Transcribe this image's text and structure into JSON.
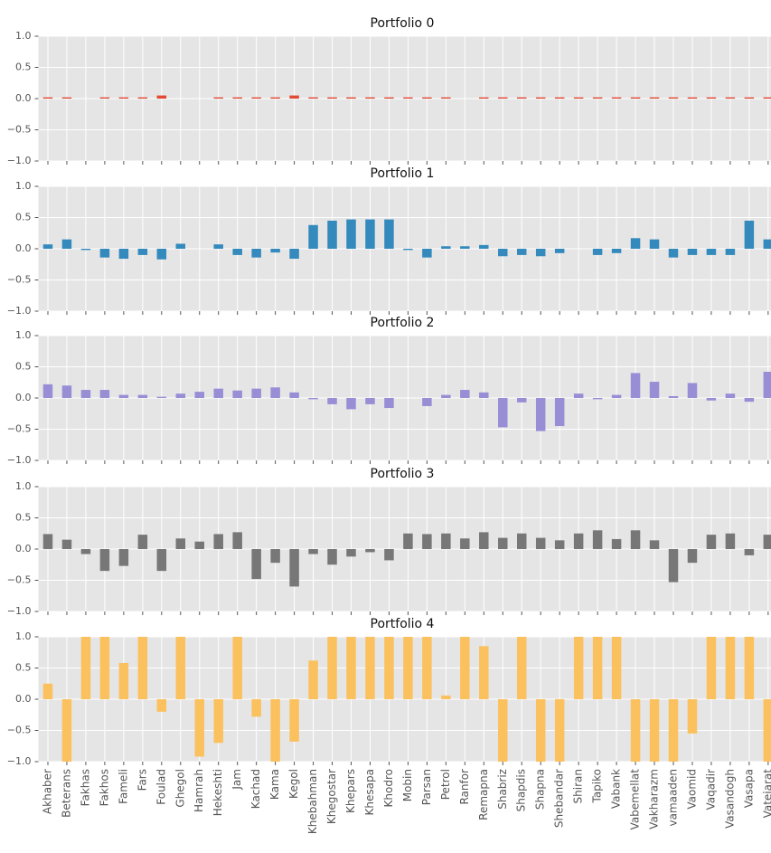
{
  "chart_data": [
    {
      "type": "bar",
      "title": "Portfolio 0",
      "color": "#e24a33",
      "values": [
        0.02,
        0.02,
        0,
        0.02,
        0.02,
        0.02,
        0.05,
        0,
        0,
        0.02,
        0.02,
        0.02,
        0.02,
        0.05,
        0.02,
        0.02,
        0.02,
        0.02,
        0.02,
        0.02,
        0.02,
        0.02,
        0,
        0.02,
        0.02,
        0.02,
        0.02,
        0.02,
        0.02,
        0.02,
        0.02,
        0.02,
        0.02,
        0.02,
        0.02,
        0.02,
        0.02,
        0.02,
        0.02
      ],
      "ylim": [
        -1,
        1
      ],
      "yticks": [
        {
          "value": -1,
          "label": "−1.0"
        },
        {
          "value": -0.5,
          "label": "−0.5"
        },
        {
          "value": 0,
          "label": "0.0"
        },
        {
          "value": 0.5,
          "label": "0.5"
        },
        {
          "value": 1,
          "label": "1.0"
        }
      ],
      "grid": true
    },
    {
      "type": "bar",
      "title": "Portfolio 1",
      "color": "#348abd",
      "values": [
        0.07,
        0.15,
        -0.02,
        -0.14,
        -0.16,
        -0.1,
        -0.17,
        0.08,
        0,
        0.07,
        -0.1,
        -0.14,
        -0.06,
        -0.16,
        0.38,
        0.45,
        0.47,
        0.47,
        0.47,
        -0.02,
        -0.14,
        0.04,
        0.04,
        0.06,
        -0.12,
        -0.1,
        -0.12,
        -0.07,
        0,
        -0.1,
        -0.07,
        0.17,
        0.15,
        -0.14,
        -0.1,
        -0.1,
        -0.1,
        0.45,
        0.15
      ],
      "ylim": [
        -1,
        1
      ],
      "yticks": [
        {
          "value": -1,
          "label": "−1.0"
        },
        {
          "value": -0.5,
          "label": "−0.5"
        },
        {
          "value": 0,
          "label": "0.0"
        },
        {
          "value": 0.5,
          "label": "0.5"
        },
        {
          "value": 1,
          "label": "1.0"
        }
      ],
      "grid": true
    },
    {
      "type": "bar",
      "title": "Portfolio 2",
      "color": "#988ed5",
      "values": [
        0.22,
        0.2,
        0.13,
        0.13,
        0.05,
        0.05,
        0.02,
        0.07,
        0.1,
        0.15,
        0.12,
        0.15,
        0.17,
        0.09,
        -0.02,
        -0.1,
        -0.18,
        -0.1,
        -0.16,
        0,
        -0.13,
        0.05,
        0.13,
        0.09,
        -0.47,
        -0.07,
        -0.53,
        -0.45,
        0.07,
        -0.02,
        0.05,
        0.4,
        0.26,
        0.03,
        0.24,
        -0.04,
        0.07,
        -0.06,
        0.42
      ],
      "ylim": [
        -1,
        1
      ],
      "yticks": [
        {
          "value": -1,
          "label": "−1.0"
        },
        {
          "value": -0.5,
          "label": "−0.5"
        },
        {
          "value": 0,
          "label": "0.0"
        },
        {
          "value": 0.5,
          "label": "0.5"
        },
        {
          "value": 1,
          "label": "1.0"
        }
      ],
      "grid": true
    },
    {
      "type": "bar",
      "title": "Portfolio 3",
      "color": "#777777",
      "values": [
        0.24,
        0.15,
        -0.08,
        -0.35,
        -0.27,
        0.23,
        -0.35,
        0.17,
        0.12,
        0.24,
        0.27,
        -0.48,
        -0.22,
        -0.6,
        -0.08,
        -0.25,
        -0.12,
        -0.05,
        -0.18,
        0.25,
        0.24,
        0.25,
        0.17,
        0.27,
        0.18,
        0.25,
        0.18,
        0.14,
        0.25,
        0.3,
        0.16,
        0.3,
        0.14,
        -0.53,
        -0.22,
        0.23,
        0.25,
        -0.1,
        0.23
      ],
      "ylim": [
        -1,
        1
      ],
      "yticks": [
        {
          "value": -1,
          "label": "−1.0"
        },
        {
          "value": -0.5,
          "label": "−0.5"
        },
        {
          "value": 0,
          "label": "0.0"
        },
        {
          "value": 0.5,
          "label": "0.5"
        },
        {
          "value": 1,
          "label": "1.0"
        }
      ],
      "grid": true
    },
    {
      "type": "bar",
      "title": "Portfolio 4",
      "color": "#fbc15e",
      "categories": [
        "Akhaber",
        "Beterans",
        "Fakhas",
        "Fakhos",
        "Fameli",
        "Fars",
        "Foulad",
        "Ghegol",
        "Hamrah",
        "Hekeshti",
        "Jam",
        "Kachad",
        "Kama",
        "Kegol",
        "Khebahman",
        "Khegostar",
        "Khepars",
        "Khesapa",
        "Khodro",
        "Mobin",
        "Parsan",
        "Petrol",
        "Ranfor",
        "Remapna",
        "Shabriz",
        "Shapdis",
        "Shapna",
        "Shebandar",
        "Shiran",
        "Tapiko",
        "Vabank",
        "Vabemellat",
        "Vakharazm",
        "vamaaden",
        "Vaomid",
        "Vaqadir",
        "Vasandogh",
        "Vasapa",
        "Vatejarat"
      ],
      "values": [
        0.25,
        -1,
        1,
        1,
        0.58,
        1,
        -0.2,
        1,
        -0.92,
        -0.7,
        1,
        -0.28,
        -1,
        -0.68,
        0.62,
        1,
        1,
        1,
        1,
        1,
        1,
        0.06,
        1,
        0.85,
        -1,
        1,
        -1,
        -1,
        1,
        1,
        1,
        -1,
        -1,
        -1,
        -0.55,
        1,
        1,
        1,
        -1
      ],
      "ylim": [
        -1,
        1
      ],
      "yticks": [
        {
          "value": -1,
          "label": "−1.0"
        },
        {
          "value": -0.5,
          "label": "−0.5"
        },
        {
          "value": 0,
          "label": "0.0"
        },
        {
          "value": 0.5,
          "label": "0.5"
        },
        {
          "value": 1,
          "label": "1.0"
        }
      ],
      "grid": true
    }
  ]
}
